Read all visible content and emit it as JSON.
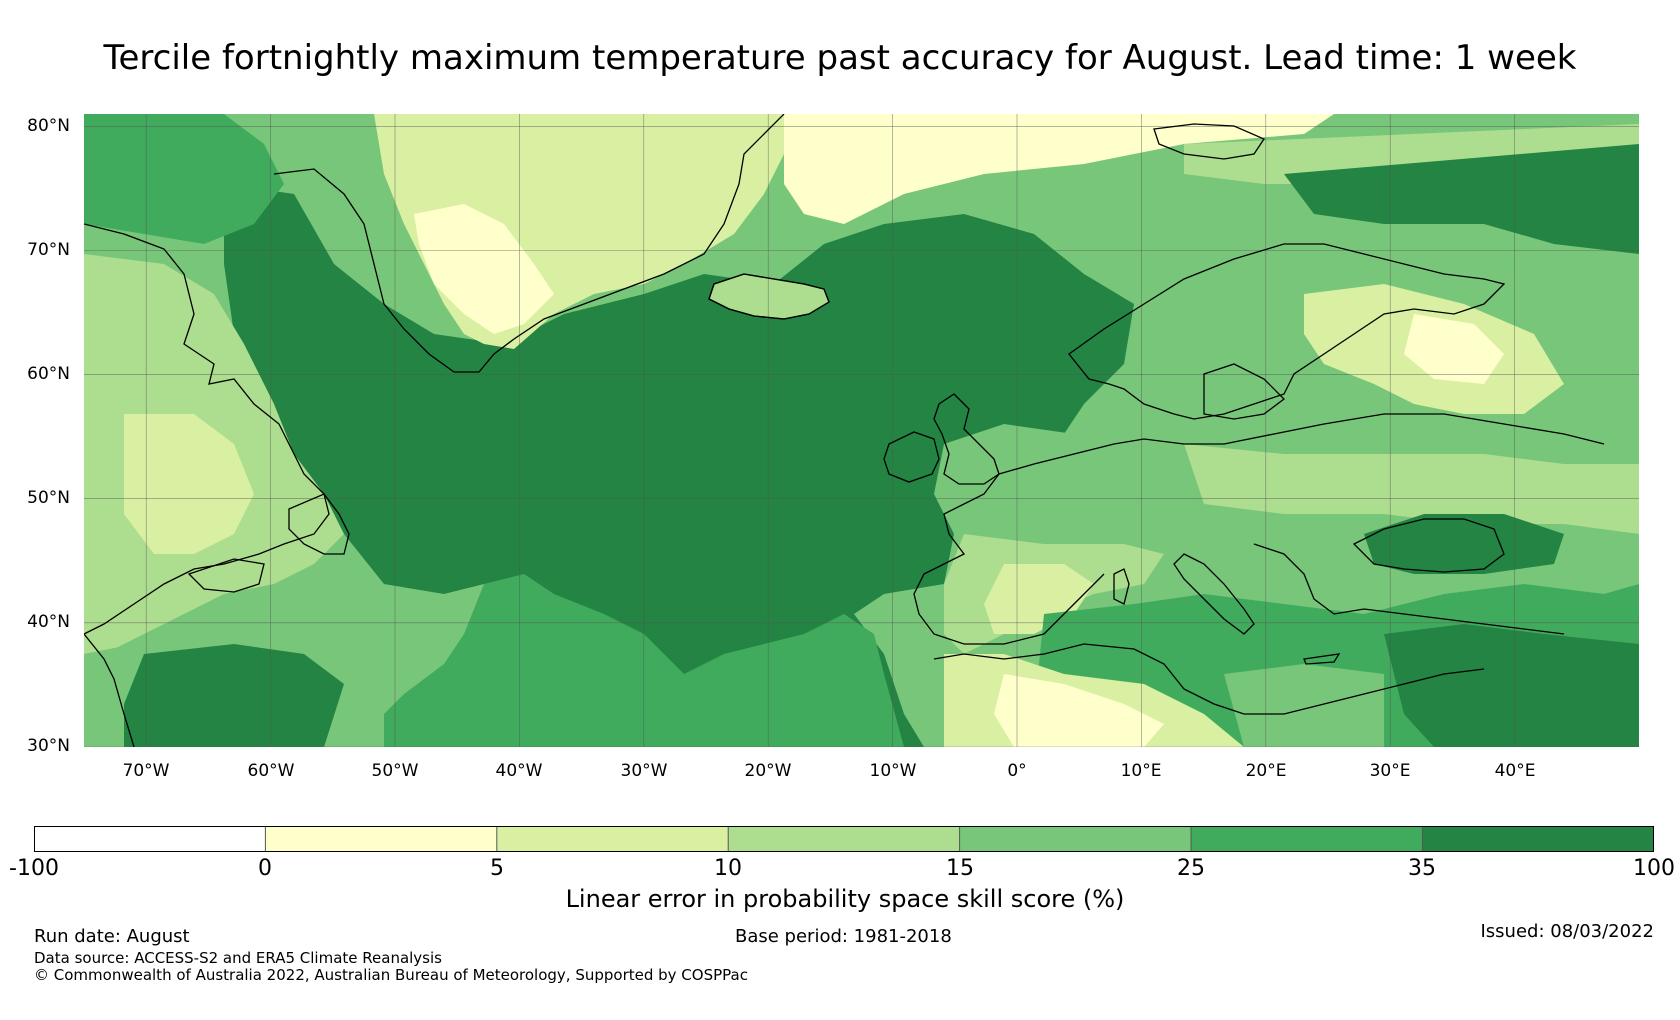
{
  "title": "Tercile fortnightly maximum temperature past accuracy for August. Lead time: 1 week",
  "map": {
    "lat_labels": [
      "80°N",
      "70°N",
      "60°N",
      "50°N",
      "40°N",
      "30°N"
    ],
    "lon_labels": [
      "70°W",
      "60°W",
      "50°W",
      "40°W",
      "30°W",
      "20°W",
      "10°W",
      "0°",
      "10°E",
      "20°E",
      "30°E",
      "40°E"
    ],
    "lon_range": [
      -75,
      50
    ],
    "lat_range": [
      30,
      81
    ],
    "colors": {
      "below_0": "#ffffff",
      "0_5": "#ffffcc",
      "5_10": "#d9f0a3",
      "10_15": "#addd8e",
      "15_25": "#78c679",
      "25_35": "#41ab5d",
      "35_100": "#238443",
      "coastline": "#000000",
      "gridline": "#444444"
    }
  },
  "colorbar": {
    "ticks": [
      "-100",
      "0",
      "5",
      "10",
      "15",
      "25",
      "35",
      "100"
    ],
    "label": "Linear error in probability space skill score (%)",
    "segment_colors": [
      "#ffffff",
      "#ffffcc",
      "#d9f0a3",
      "#addd8e",
      "#78c679",
      "#41ab5d",
      "#238443"
    ]
  },
  "footer": {
    "run_date": "Run date: August",
    "base_period": "Base period: 1981-2018",
    "issued": "Issued: 08/03/2022",
    "data_source": "Data source: ACCESS-S2 and ERA5 Climate Reanalysis",
    "copyright": "© Commonwealth of Australia 2022, Australian Bureau of Meteorology, Supported by COSPPac"
  }
}
